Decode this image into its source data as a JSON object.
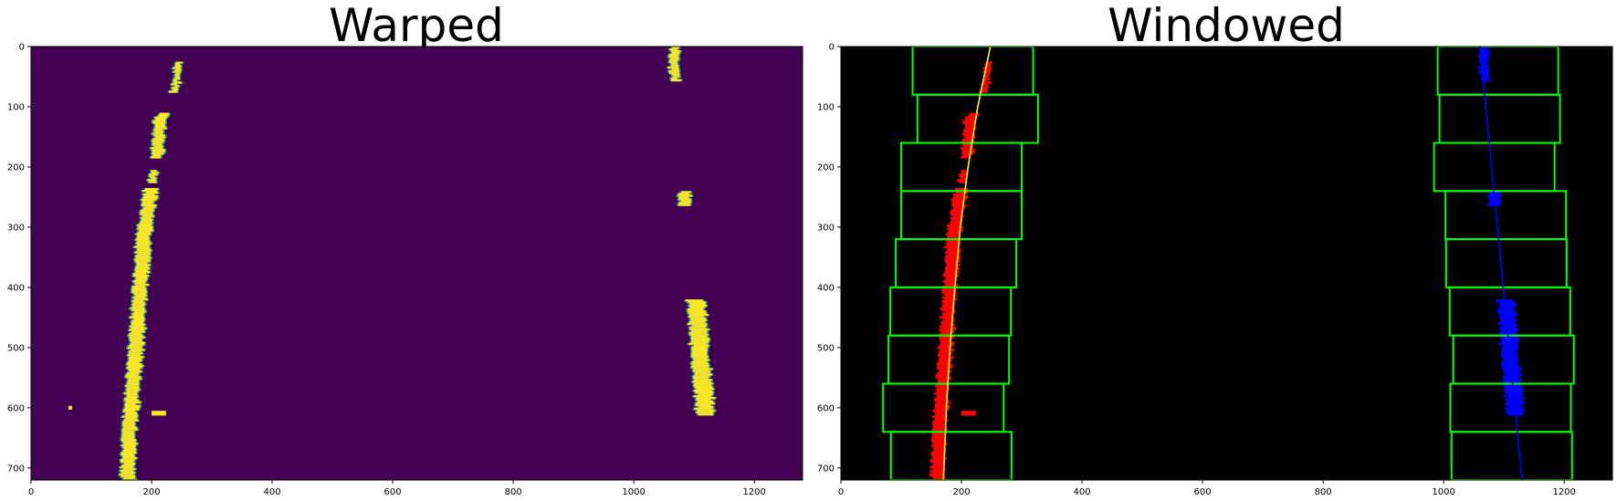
{
  "figure": {
    "background": "#ffffff"
  },
  "chart_data": [
    {
      "type": "image",
      "title": "Warped",
      "xlim": [
        0,
        1280
      ],
      "ylim": [
        720,
        0
      ],
      "xticks": [
        0,
        200,
        400,
        600,
        800,
        1000,
        1200
      ],
      "yticks": [
        0,
        100,
        200,
        300,
        400,
        500,
        600,
        700
      ],
      "colors": {
        "background": "#440154",
        "pixel_on": "#fde725",
        "edge": "#21918c"
      },
      "left_lane": {
        "y": [
          0,
          90,
          120,
          200,
          250,
          330,
          400,
          500,
          600,
          650,
          720
        ],
        "x_center": [
          250,
          235,
          215,
          206,
          197,
          186,
          181,
          174,
          166,
          163,
          161
        ]
      },
      "right_lane": {
        "y": [
          0,
          60,
          240,
          260,
          420,
          600
        ],
        "x_center": [
          1067,
          1069,
          1086,
          1086,
          1103,
          1118
        ]
      }
    },
    {
      "type": "image",
      "title": "Windowed",
      "xlim": [
        0,
        1280
      ],
      "ylim": [
        720,
        0
      ],
      "xticks": [
        0,
        200,
        400,
        600,
        800,
        1000,
        1200
      ],
      "yticks": [
        0,
        100,
        200,
        300,
        400,
        500,
        600,
        700
      ],
      "colors": {
        "background": "#000000",
        "left_pixels": "#ff0000",
        "right_pixels": "#0000ff",
        "left_fit": "#ffff00",
        "right_fit": "#0000ff",
        "windows": "#00ff00"
      },
      "left_windows": [
        {
          "x": [
            119,
            319
          ],
          "y": [
            0,
            80
          ]
        },
        {
          "x": [
            127,
            327
          ],
          "y": [
            80,
            160
          ]
        },
        {
          "x": [
            100,
            300
          ],
          "y": [
            160,
            240
          ]
        },
        {
          "x": [
            100,
            300
          ],
          "y": [
            240,
            320
          ]
        },
        {
          "x": [
            91,
            291
          ],
          "y": [
            320,
            400
          ]
        },
        {
          "x": [
            82,
            282
          ],
          "y": [
            400,
            480
          ]
        },
        {
          "x": [
            79,
            279
          ],
          "y": [
            480,
            560
          ]
        },
        {
          "x": [
            70,
            270
          ],
          "y": [
            560,
            640
          ]
        },
        {
          "x": [
            83,
            283
          ],
          "y": [
            640,
            720
          ]
        }
      ],
      "right_windows": [
        {
          "x": [
            990,
            1190
          ],
          "y": [
            0,
            80
          ]
        },
        {
          "x": [
            993,
            1193
          ],
          "y": [
            80,
            160
          ]
        },
        {
          "x": [
            984,
            1184
          ],
          "y": [
            160,
            240
          ]
        },
        {
          "x": [
            1003,
            1203
          ],
          "y": [
            240,
            320
          ]
        },
        {
          "x": [
            1004,
            1204
          ],
          "y": [
            320,
            400
          ]
        },
        {
          "x": [
            1010,
            1210
          ],
          "y": [
            400,
            480
          ]
        },
        {
          "x": [
            1016,
            1216
          ],
          "y": [
            480,
            560
          ]
        },
        {
          "x": [
            1011,
            1211
          ],
          "y": [
            560,
            640
          ]
        },
        {
          "x": [
            1013,
            1213
          ],
          "y": [
            640,
            720
          ]
        }
      ],
      "left_fit": {
        "y": [
          0,
          100,
          200,
          300,
          400,
          500,
          600,
          720
        ],
        "x": [
          248,
          227,
          211,
          198,
          189,
          181,
          175,
          170
        ]
      },
      "right_fit": {
        "y": [
          0,
          720
        ],
        "x": [
          1060,
          1130
        ]
      }
    }
  ]
}
